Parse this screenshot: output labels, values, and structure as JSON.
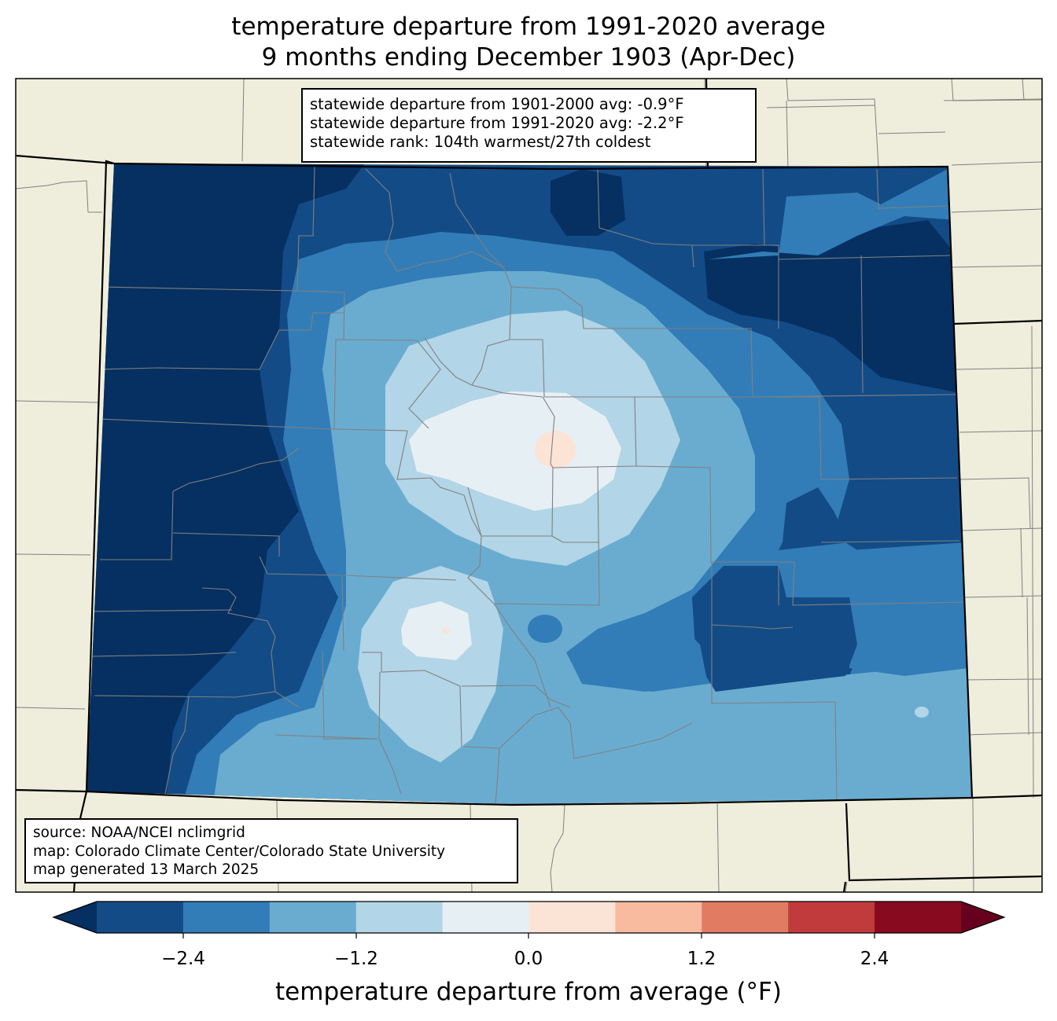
{
  "title": {
    "line1": "temperature departure from 1991-2020 average",
    "line2": "9 months ending December 1903 (Apr-Dec)"
  },
  "stats": {
    "line1": "statewide departure from 1901-2000 avg: -0.9°F",
    "line2": "statewide departure from 1991-2020 avg: -2.2°F",
    "line3": "statewide rank: 104th warmest/27th coldest"
  },
  "source": {
    "line1": "source: NOAA/NCEI nclimgrid",
    "line2": "map: Colorado Climate Center/Colorado State University",
    "line3": "map generated 13 March 2025"
  },
  "colorbar": {
    "label": "temperature departure from average (°F)",
    "ticks": [
      "−2.4",
      "−1.2",
      "0.0",
      "1.2",
      "2.4"
    ],
    "colors": [
      "#053061",
      "#134b87",
      "#327db7",
      "#6aacd0",
      "#b2d5e7",
      "#e6eff4",
      "#fbe4d6",
      "#f8bba0",
      "#e17c63",
      "#c13b3c",
      "#880a1f",
      "#67001f"
    ]
  },
  "colors": {
    "land": "#efeedc",
    "county_lines": "#808080",
    "state_lines": "#000000"
  }
}
